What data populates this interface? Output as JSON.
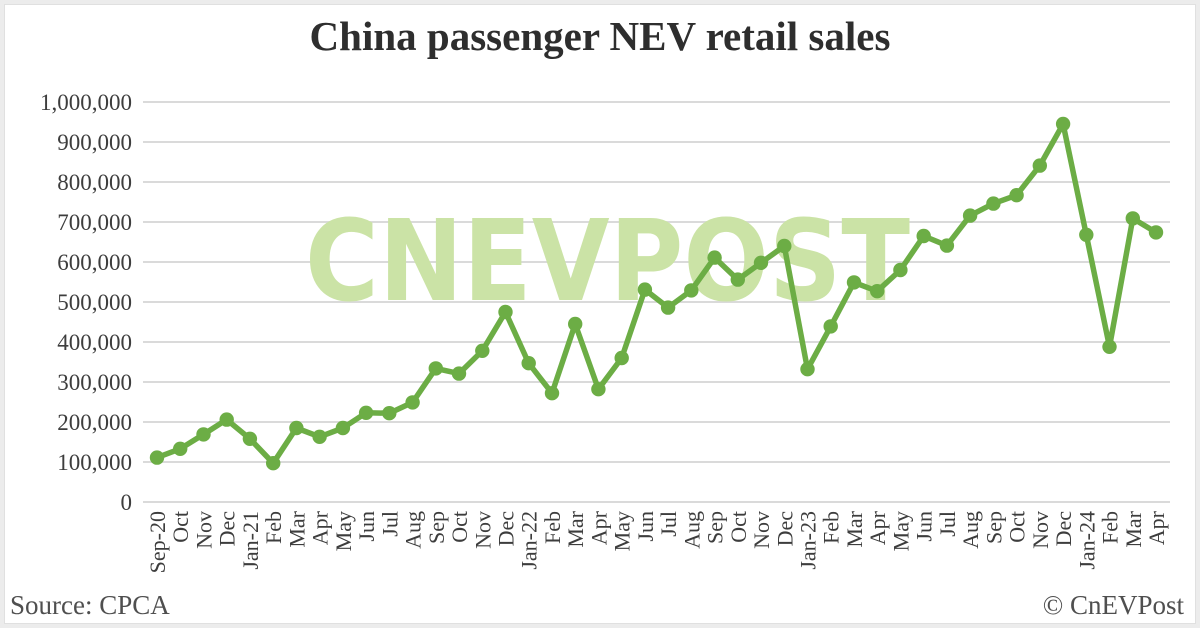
{
  "title": "China passenger NEV retail sales",
  "watermark": "CNEVPOST",
  "footer": {
    "source": "Source: CPCA",
    "credit": "© CnEVPost"
  },
  "colors": {
    "line": "#6CAD45",
    "marker": "#6CAD45",
    "watermark": "#CBE3A6",
    "grid": "#DADADA",
    "axis_text": "#3D3D3D",
    "title_text": "#2E2E2E",
    "footer_text": "#4F4F4F",
    "frame": "#ECECEC"
  },
  "chart_data": {
    "type": "line",
    "title": "China passenger NEV retail sales",
    "xlabel": "",
    "ylabel": "",
    "ylim": [
      0,
      1000000
    ],
    "yticks": [
      0,
      100000,
      200000,
      300000,
      400000,
      500000,
      600000,
      700000,
      800000,
      900000,
      1000000
    ],
    "grid": true,
    "legend": false,
    "marker": "circle",
    "x": [
      "Sep-20",
      "Oct",
      "Nov",
      "Dec",
      "Jan-21",
      "Feb",
      "Mar",
      "Apr",
      "May",
      "Jun",
      "Jul",
      "Aug",
      "Sep",
      "Oct",
      "Nov",
      "Dec",
      "Jan-22",
      "Feb",
      "Mar",
      "Apr",
      "May",
      "Jun",
      "Jul",
      "Aug",
      "Sep",
      "Oct",
      "Nov",
      "Dec",
      "Jan-23",
      "Feb",
      "Mar",
      "Apr",
      "May",
      "Jun",
      "Jul",
      "Aug",
      "Sep",
      "Oct",
      "Nov",
      "Dec",
      "Jan-24",
      "Feb",
      "Mar",
      "Apr"
    ],
    "values": [
      111000,
      133000,
      169000,
      206000,
      158000,
      97000,
      185000,
      163000,
      185000,
      223000,
      222000,
      249000,
      334000,
      321000,
      378000,
      475000,
      347000,
      272000,
      445000,
      282000,
      360000,
      531000,
      486000,
      529000,
      611000,
      556000,
      598000,
      640000,
      332000,
      439000,
      549000,
      527000,
      580000,
      665000,
      641000,
      716000,
      746000,
      767000,
      841000,
      945000,
      668000,
      388000,
      709000,
      674000
    ]
  }
}
